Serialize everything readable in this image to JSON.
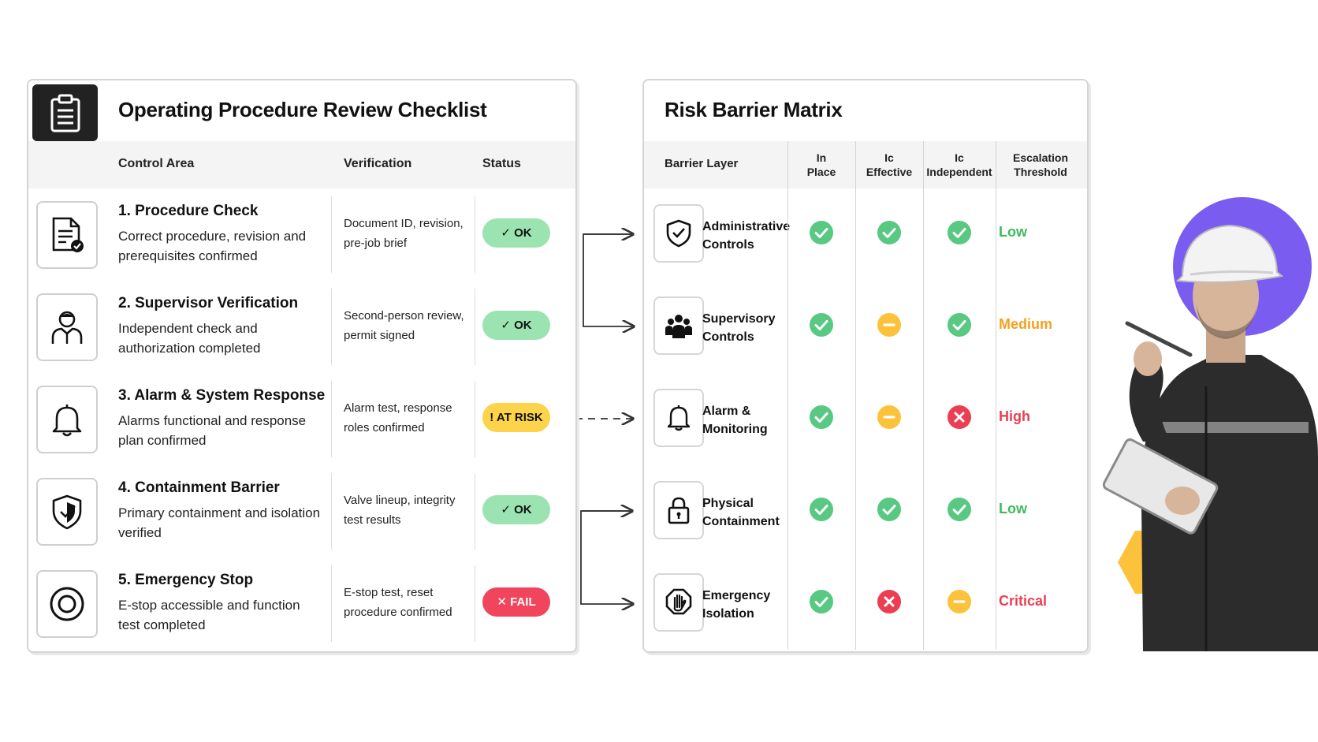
{
  "checklist": {
    "title": "Operating Procedure Review Checklist",
    "header_icon": "clipboard-icon",
    "columns": {
      "control_area": "Control Area",
      "verification": "Verification",
      "status": "Status"
    },
    "rows": [
      {
        "title": "1. Procedure Check",
        "description": "Correct procedure, revision and prerequisites confirmed",
        "verification": "Document ID, revision, pre-job brief",
        "status": "OK",
        "status_kind": "ok",
        "icon": "document-check-icon"
      },
      {
        "title": "2. Supervisor Verification",
        "description": "Independent check and authorization completed",
        "verification": "Second-person review, permit signed",
        "status": "OK",
        "status_kind": "ok",
        "icon": "person-icon"
      },
      {
        "title": "3. Alarm & System Response",
        "description": "Alarms functional and response plan confirmed",
        "verification": "Alarm test, response roles confirmed",
        "status": "AT RISK",
        "status_kind": "risk",
        "icon": "bell-icon"
      },
      {
        "title": "4. Containment Barrier",
        "description": "Primary containment and isolation verified",
        "verification": "Valve lineup, integrity test results",
        "status": "OK",
        "status_kind": "ok",
        "icon": "shield-icon"
      },
      {
        "title": "5. Emergency Stop",
        "description": "E-stop accessible and function test completed",
        "verification": "E-stop test, reset procedure confirmed",
        "status": "FAIL",
        "status_kind": "fail",
        "icon": "emergency-stop-icon"
      }
    ]
  },
  "matrix": {
    "title": "Risk Barrier Matrix",
    "columns": {
      "barrier_layer": "Barrier Layer",
      "in_place": "In\nPlace",
      "effective": "Ic\nEffective",
      "independent": "Ic\nIndependent",
      "escalation": "Escalation\nThreshold"
    },
    "rows": [
      {
        "layer": "Administrative Controls",
        "icon": "shield-check-icon",
        "in_place": "ok",
        "effective": "ok",
        "independent": "ok",
        "threshold": "Low"
      },
      {
        "layer": "Supervisory Controls",
        "icon": "people-group-icon",
        "in_place": "ok",
        "effective": "partial",
        "independent": "ok",
        "threshold": "Medium"
      },
      {
        "layer": "Alarm & Monitoring",
        "icon": "bell-icon",
        "in_place": "ok",
        "effective": "partial",
        "independent": "fail",
        "threshold": "High"
      },
      {
        "layer": "Physical Containment",
        "icon": "padlock-icon",
        "in_place": "ok",
        "effective": "ok",
        "independent": "ok",
        "threshold": "Low"
      },
      {
        "layer": "Emergency Isolation",
        "icon": "hand-stop-icon",
        "in_place": "ok",
        "effective": "fail",
        "independent": "partial",
        "threshold": "Critical"
      }
    ]
  },
  "colors": {
    "ok_pill": "#9be3b0",
    "risk_pill": "#fcd34a",
    "fail_pill": "#f0455d",
    "ok_dot": "#58c883",
    "partial_dot": "#fcc23c",
    "fail_dot": "#ec3e52",
    "low": "#3dbb5c",
    "medium": "#f5a11c",
    "high": "#ec3e52",
    "critical": "#ec3e52",
    "accent_circle": "#7b5cf0",
    "accent_hexagon": "#fcc23c"
  },
  "decor": {
    "illustration": "safety-worker-with-tablet",
    "accent_shapes": [
      "purple-circle",
      "yellow-hexagon"
    ]
  }
}
